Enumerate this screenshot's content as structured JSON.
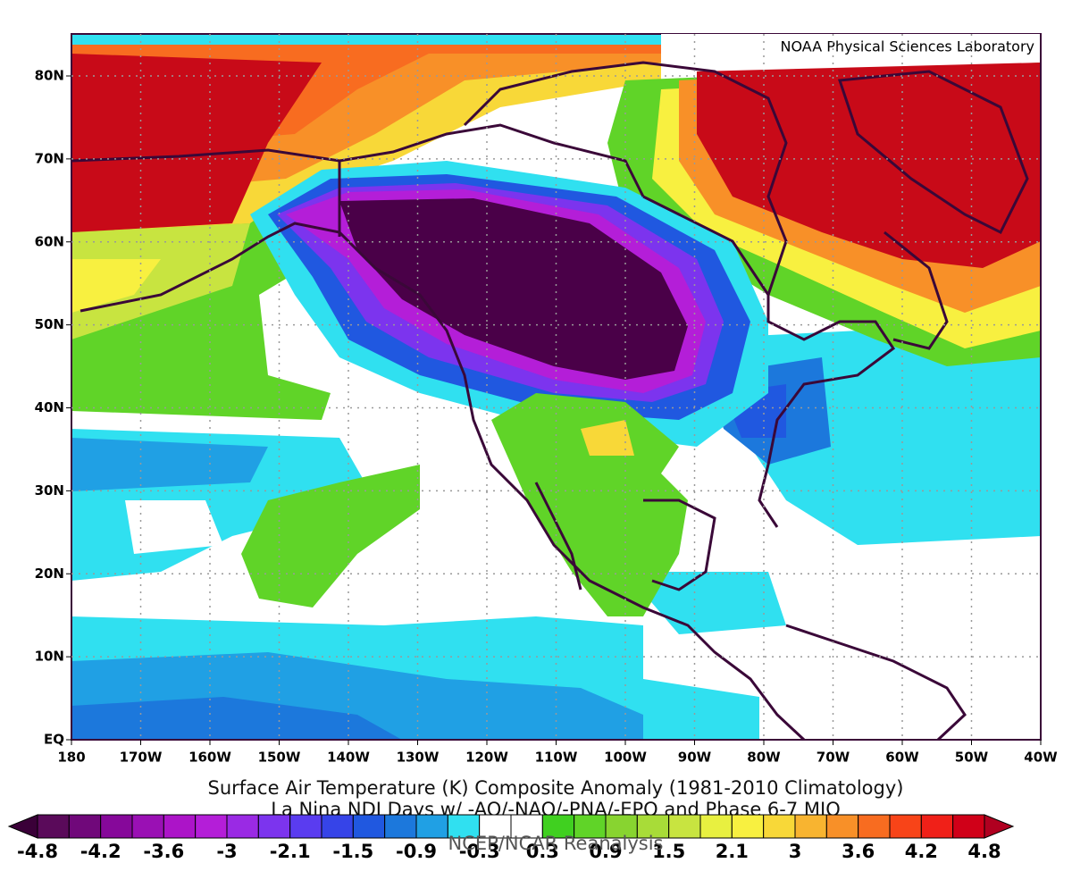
{
  "credit": "NOAA Physical Sciences Laboratory",
  "map": {
    "xticks": [
      "180",
      "170W",
      "160W",
      "150W",
      "140W",
      "130W",
      "120W",
      "110W",
      "100W",
      "90W",
      "80W",
      "70W",
      "60W",
      "50W",
      "40W"
    ],
    "yticks": [
      "EQ",
      "10N",
      "20N",
      "30N",
      "40N",
      "50N",
      "60N",
      "70N",
      "80N"
    ]
  },
  "caption": {
    "title": "Surface Air Temperature (K) Composite Anomaly (1981-2010 Climatology)",
    "subtitle": "La Nina NDJ Days w/ -AO/-NAO/-PNA/-EPO and Phase 6-7 MJO",
    "source": "NCEP/NCAR Reanalysis"
  },
  "colorbar": {
    "labels": [
      "-4.8",
      "-4.2",
      "-3.6",
      "-3",
      "-2.1",
      "-1.5",
      "-0.9",
      "-0.3",
      "0.3",
      "0.9",
      "1.5",
      "2.1",
      "3",
      "3.6",
      "4.2",
      "4.8"
    ],
    "colors": [
      "#5a0a5a",
      "#70087a",
      "#86089a",
      "#9a10b4",
      "#ac14c8",
      "#b41ed8",
      "#9a2ae4",
      "#7c34ee",
      "#5a3cf0",
      "#3644e8",
      "#2058e0",
      "#1c78dc",
      "#20a0e4",
      "#30e0f0",
      "#ffffff",
      "#ffffff",
      "#40d020",
      "#60d428",
      "#88d430",
      "#a8dc38",
      "#c8e440",
      "#e8f040",
      "#f8f040",
      "#f8d838",
      "#f8b430",
      "#f89028",
      "#f86c20",
      "#f84418",
      "#f02018",
      "#d00018"
    ],
    "under_color": "#3a0038",
    "over_color": "#b00020"
  }
}
